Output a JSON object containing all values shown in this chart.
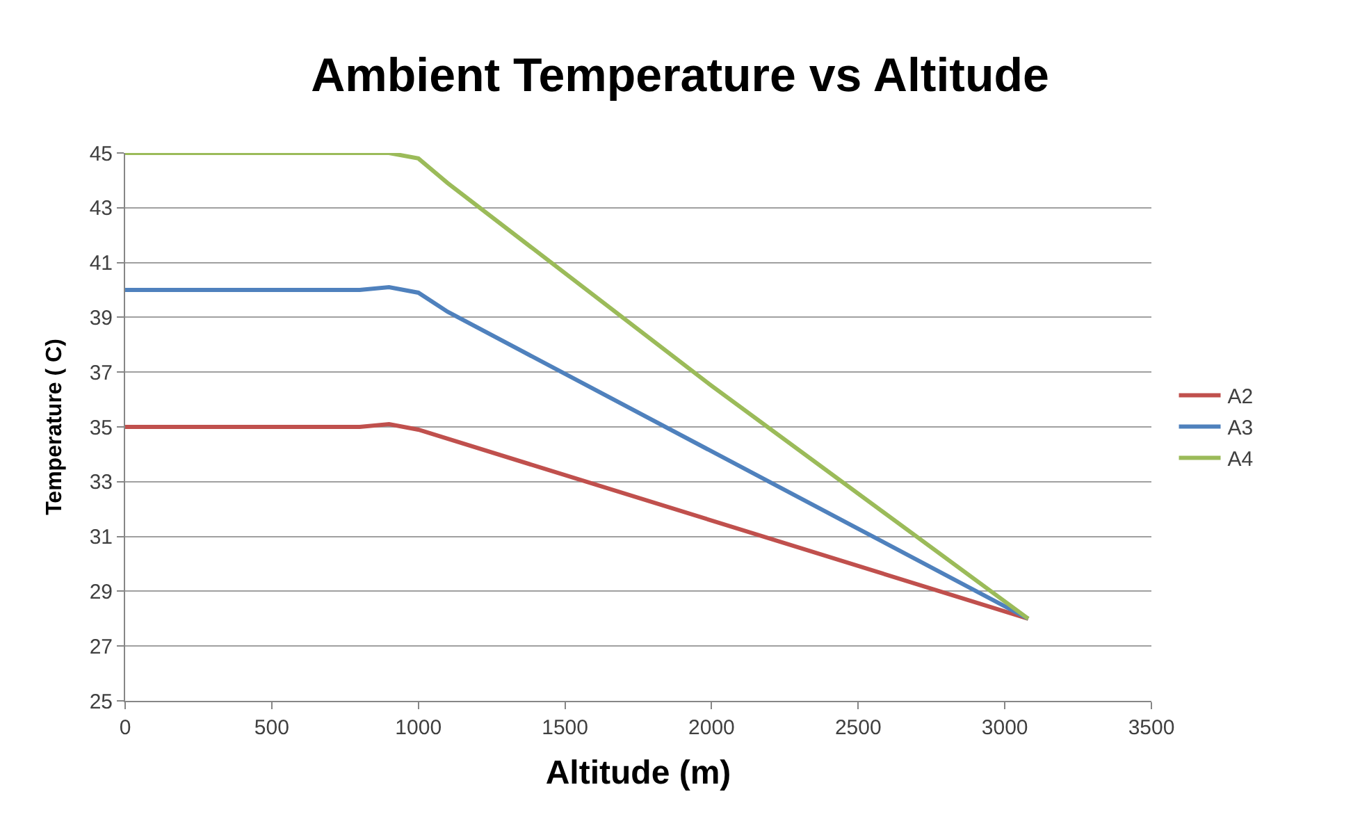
{
  "chart_data": {
    "type": "line",
    "title": "Ambient Temperature vs Altitude",
    "xlabel": "Altitude (m)",
    "ylabel": "Temperature ( C)",
    "series": [
      {
        "name": "A2",
        "color": "#c0504d",
        "x": [
          0,
          500,
          800,
          900,
          1000,
          3080
        ],
        "values": [
          35,
          35,
          35,
          35.1,
          34.9,
          28
        ]
      },
      {
        "name": "A3",
        "color": "#4f81bd",
        "x": [
          0,
          500,
          800,
          900,
          1000,
          1100,
          3080
        ],
        "values": [
          40,
          40,
          40,
          40.1,
          39.9,
          39.2,
          28
        ]
      },
      {
        "name": "A4",
        "color": "#9bbb59",
        "x": [
          0,
          500,
          900,
          1000,
          1100,
          2000,
          3080
        ],
        "values": [
          45,
          45,
          45,
          44.8,
          43.9,
          36.5,
          28
        ]
      }
    ],
    "xlim": [
      0,
      3500
    ],
    "xticks": [
      0,
      500,
      1000,
      1500,
      2000,
      2500,
      3000,
      3500
    ],
    "ylim": [
      25,
      45
    ],
    "yticks": [
      25,
      27,
      29,
      31,
      33,
      35,
      37,
      39,
      41,
      43,
      45
    ],
    "grid": "y",
    "legend": "right",
    "marker": "none",
    "line_style": "solid"
  }
}
